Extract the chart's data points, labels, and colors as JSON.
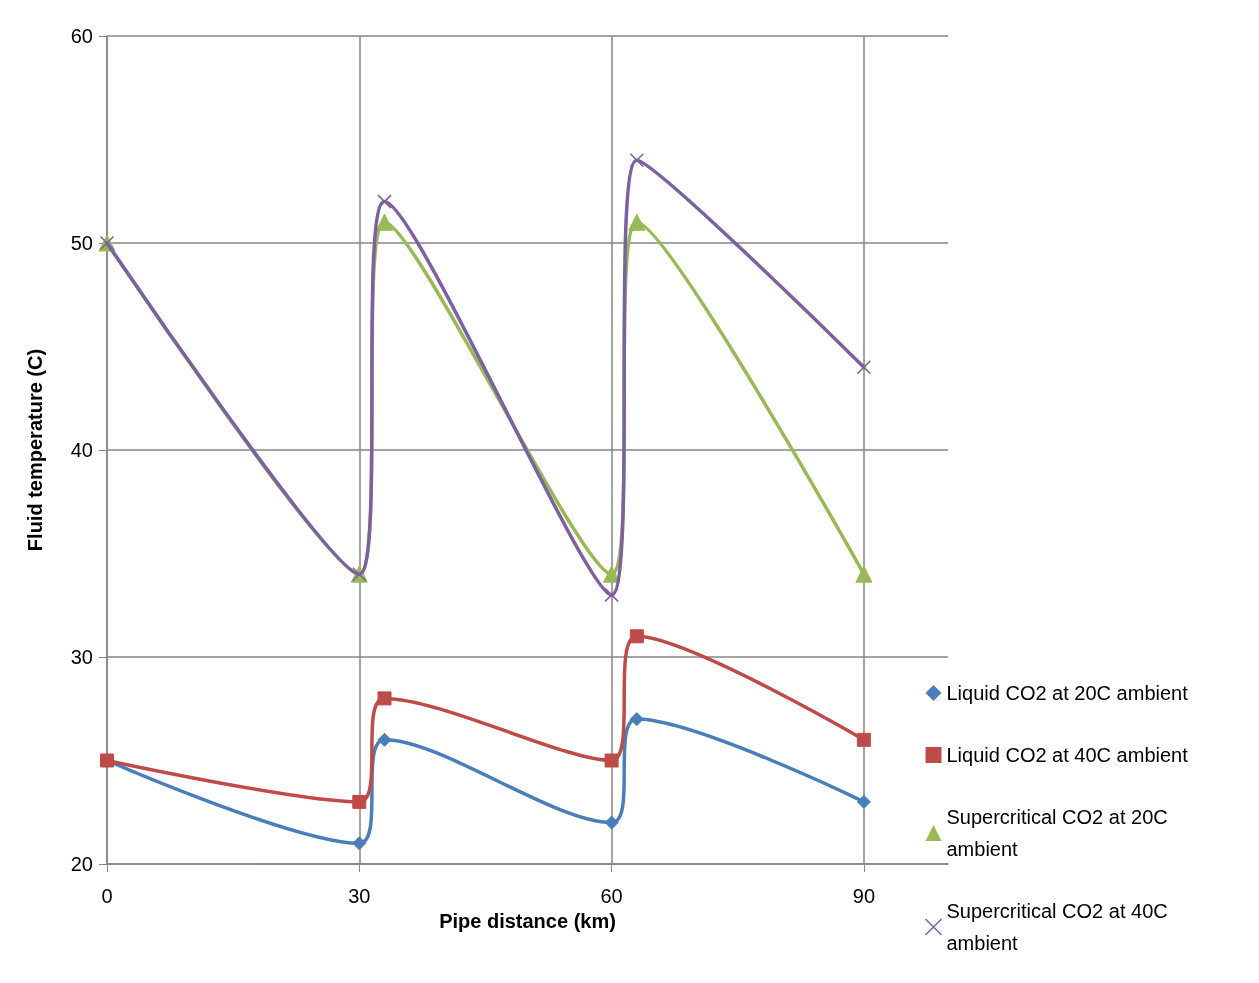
{
  "chart_data": {
    "type": "line",
    "xlabel": "Pipe distance (km)",
    "ylabel": "Fluid temperature (C)",
    "x": [
      0,
      30,
      33,
      60,
      63,
      90
    ],
    "xlim": [
      0,
      100
    ],
    "xticks": [
      0,
      30,
      60,
      90
    ],
    "ylim": [
      20,
      60
    ],
    "yticks": [
      20,
      30,
      40,
      50,
      60
    ],
    "grid": true,
    "legend": "right",
    "line_style": "solid",
    "series": [
      {
        "name": "Liquid CO2 at 20C ambient",
        "color": "#4a7ebb",
        "marker": "diamond",
        "values": [
          25,
          21,
          26,
          22,
          27,
          23
        ]
      },
      {
        "name": "Liquid CO2 at 40C ambient",
        "color": "#be4b48",
        "marker": "square",
        "values": [
          25,
          23,
          28,
          25,
          31,
          26
        ]
      },
      {
        "name": "Supercritical CO2 at 20C ambient",
        "color": "#98b954",
        "marker": "triangle",
        "values": [
          50,
          34,
          51,
          34,
          51,
          34
        ]
      },
      {
        "name": "Supercritical CO2 at 40C ambient",
        "color": "#7d60a0",
        "marker": "cross",
        "values": [
          50,
          34,
          52,
          33,
          54,
          44
        ]
      }
    ]
  }
}
